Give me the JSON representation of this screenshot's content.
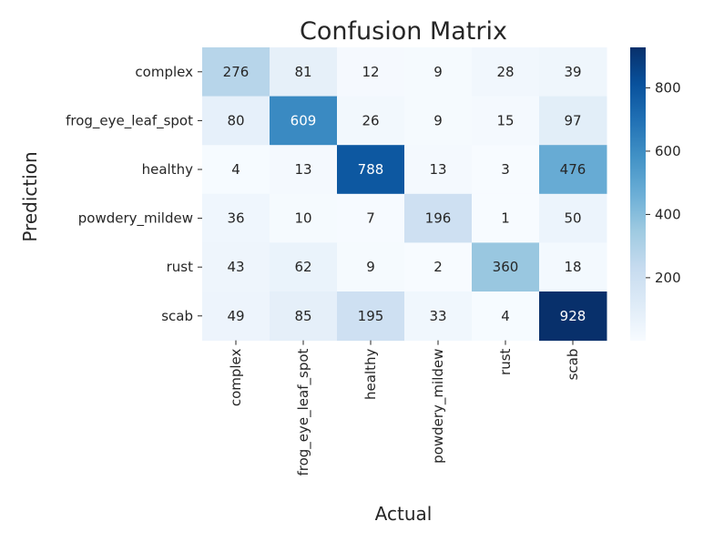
{
  "chart_data": {
    "type": "heatmap",
    "title": "Confusion Matrix",
    "xlabel": "Actual",
    "ylabel": "Prediction",
    "x_categories": [
      "complex",
      "frog_eye_leaf_spot",
      "healthy",
      "powdery_mildew",
      "rust",
      "scab"
    ],
    "y_categories": [
      "complex",
      "frog_eye_leaf_spot",
      "healthy",
      "powdery_mildew",
      "rust",
      "scab"
    ],
    "values": [
      [
        276,
        81,
        12,
        9,
        28,
        39
      ],
      [
        80,
        609,
        26,
        9,
        15,
        97
      ],
      [
        4,
        13,
        788,
        13,
        3,
        476
      ],
      [
        36,
        10,
        7,
        196,
        1,
        50
      ],
      [
        43,
        62,
        9,
        2,
        360,
        18
      ],
      [
        49,
        85,
        195,
        33,
        4,
        928
      ]
    ],
    "colormap": "Blues",
    "color_range": [
      1,
      928
    ],
    "colorbar_ticks": [
      200,
      400,
      600,
      800
    ],
    "annotations": true
  }
}
